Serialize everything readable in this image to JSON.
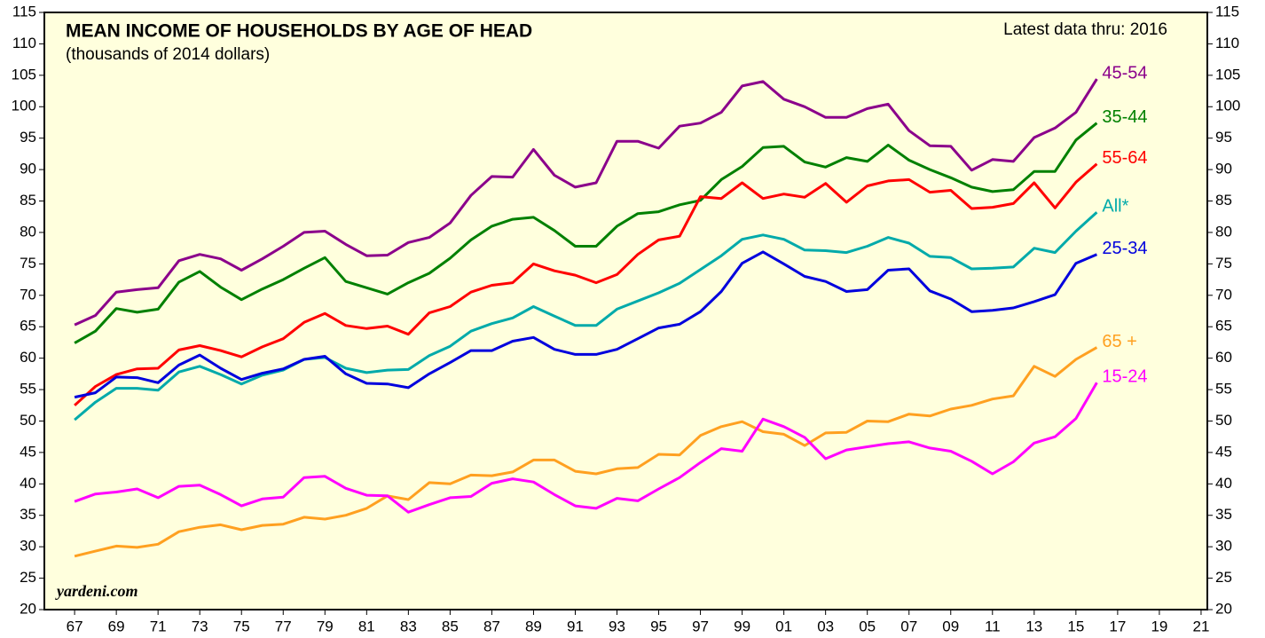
{
  "chart_data": {
    "type": "line",
    "title": "MEAN INCOME OF HOUSEHOLDS BY AGE OF HEAD",
    "subtitle": "(thousands of 2014 dollars)",
    "annotation": "Latest data thru: 2016",
    "source": "yardeni.com",
    "x": [
      1967,
      1968,
      1969,
      1970,
      1971,
      1972,
      1973,
      1974,
      1975,
      1976,
      1977,
      1978,
      1979,
      1980,
      1981,
      1982,
      1983,
      1984,
      1985,
      1986,
      1987,
      1988,
      1989,
      1990,
      1991,
      1992,
      1993,
      1994,
      1995,
      1996,
      1997,
      1998,
      1999,
      2000,
      2001,
      2002,
      2003,
      2004,
      2005,
      2006,
      2007,
      2008,
      2009,
      2010,
      2011,
      2012,
      2013,
      2014,
      2015,
      2016
    ],
    "series": [
      {
        "name": "45-54",
        "color": "#8b008b",
        "values": [
          65.3,
          66.8,
          70.5,
          70.9,
          71.2,
          75.5,
          76.5,
          75.8,
          74,
          75.8,
          77.8,
          80,
          80.2,
          78.1,
          76.3,
          76.4,
          78.4,
          79.2,
          81.5,
          85.9,
          88.9,
          88.8,
          93.2,
          89.1,
          87.2,
          87.9,
          94.5,
          94.5,
          93.4,
          96.9,
          97.4,
          99.1,
          103.3,
          104,
          101.2,
          100,
          98.3,
          98.3,
          99.7,
          100.4,
          96.2,
          93.8,
          93.7,
          89.9,
          91.6,
          91.3,
          95.1,
          96.6,
          99.1,
          104.4
        ]
      },
      {
        "name": "35-44",
        "color": "#008000",
        "values": [
          62.4,
          64.3,
          67.9,
          67.3,
          67.8,
          72.1,
          73.8,
          71.3,
          69.3,
          71,
          72.5,
          74.3,
          76,
          72.2,
          71.2,
          70.2,
          72,
          73.5,
          75.9,
          78.8,
          81,
          82.1,
          82.4,
          80.3,
          77.8,
          77.8,
          81,
          83,
          83.3,
          84.4,
          85.1,
          88.4,
          90.5,
          93.5,
          93.7,
          91.2,
          90.4,
          91.9,
          91.3,
          93.9,
          91.5,
          90,
          88.7,
          87.2,
          86.5,
          86.8,
          89.7,
          89.7,
          94.7,
          97.4
        ]
      },
      {
        "name": "55-64",
        "color": "#ff0000",
        "values": [
          52.5,
          55.5,
          57.4,
          58.3,
          58.4,
          61.3,
          62,
          61.2,
          60.2,
          61.8,
          63.1,
          65.7,
          67.1,
          65.2,
          64.7,
          65.1,
          63.8,
          67.2,
          68.2,
          70.5,
          71.6,
          72,
          75,
          73.9,
          73.2,
          72,
          73.3,
          76.5,
          78.8,
          79.4,
          85.7,
          85.4,
          87.9,
          85.4,
          86.1,
          85.6,
          87.8,
          84.8,
          87.4,
          88.2,
          88.4,
          86.4,
          86.7,
          83.8,
          84,
          84.6,
          87.9,
          83.9,
          88,
          90.9
        ]
      },
      {
        "name": "All*",
        "color": "#00aaaa",
        "values": [
          50.2,
          53,
          55.2,
          55.2,
          54.9,
          57.8,
          58.7,
          57.4,
          55.9,
          57.3,
          58.1,
          59.8,
          60.1,
          58.4,
          57.7,
          58.1,
          58.2,
          60.4,
          61.9,
          64.3,
          65.5,
          66.4,
          68.2,
          66.7,
          65.2,
          65.2,
          67.8,
          69.1,
          70.4,
          71.9,
          74.1,
          76.3,
          78.9,
          79.6,
          78.9,
          77.2,
          77.1,
          76.8,
          77.8,
          79.2,
          78.3,
          76.2,
          76,
          74.2,
          74.3,
          74.5,
          77.5,
          76.8,
          80.2,
          83.2
        ]
      },
      {
        "name": "25-34",
        "color": "#0000dd",
        "values": [
          53.8,
          54.5,
          57,
          56.9,
          56.1,
          58.9,
          60.5,
          58.4,
          56.6,
          57.6,
          58.3,
          59.8,
          60.3,
          57.5,
          56,
          55.9,
          55.3,
          57.5,
          59.3,
          61.2,
          61.2,
          62.7,
          63.3,
          61.4,
          60.6,
          60.6,
          61.4,
          63.1,
          64.8,
          65.4,
          67.4,
          70.6,
          75.1,
          76.9,
          75,
          73,
          72.2,
          70.6,
          70.9,
          74,
          74.2,
          70.7,
          69.4,
          67.4,
          67.6,
          68,
          69,
          70.1,
          75.1,
          76.5
        ]
      },
      {
        "name": "65 +",
        "color": "#ffa020",
        "values": [
          28.5,
          29.3,
          30.1,
          29.9,
          30.4,
          32.4,
          33.1,
          33.5,
          32.7,
          33.4,
          33.6,
          34.7,
          34.4,
          35,
          36.1,
          38.1,
          37.5,
          40.2,
          40,
          41.4,
          41.3,
          41.9,
          43.8,
          43.8,
          42,
          41.6,
          42.4,
          42.6,
          44.7,
          44.6,
          47.7,
          49.1,
          49.9,
          48.3,
          47.9,
          46.1,
          48.1,
          48.2,
          50,
          49.9,
          51.1,
          50.8,
          51.9,
          52.5,
          53.5,
          54,
          58.7,
          57.1,
          59.8,
          61.7
        ]
      },
      {
        "name": "15-24",
        "color": "#ff00ff",
        "values": [
          37.2,
          38.4,
          38.7,
          39.2,
          37.8,
          39.6,
          39.8,
          38.3,
          36.5,
          37.6,
          37.9,
          41,
          41.2,
          39.3,
          38.2,
          38.1,
          35.5,
          36.7,
          37.8,
          38,
          40.1,
          40.8,
          40.3,
          38.3,
          36.5,
          36.1,
          37.7,
          37.3,
          39.2,
          41,
          43.4,
          45.6,
          45.2,
          50.3,
          49.1,
          47.4,
          44,
          45.4,
          45.9,
          46.4,
          46.7,
          45.7,
          45.2,
          43.6,
          41.6,
          43.5,
          46.5,
          47.5,
          50.4,
          56.1
        ]
      }
    ],
    "xlim": [
      1965.55,
      2021.3
    ],
    "xticks": [
      {
        "value": 1967,
        "label": "67"
      },
      {
        "value": 1969,
        "label": "69"
      },
      {
        "value": 1971,
        "label": "71"
      },
      {
        "value": 1973,
        "label": "73"
      },
      {
        "value": 1975,
        "label": "75"
      },
      {
        "value": 1977,
        "label": "77"
      },
      {
        "value": 1979,
        "label": "79"
      },
      {
        "value": 1981,
        "label": "81"
      },
      {
        "value": 1983,
        "label": "83"
      },
      {
        "value": 1985,
        "label": "85"
      },
      {
        "value": 1987,
        "label": "87"
      },
      {
        "value": 1989,
        "label": "89"
      },
      {
        "value": 1991,
        "label": "91"
      },
      {
        "value": 1993,
        "label": "93"
      },
      {
        "value": 1995,
        "label": "95"
      },
      {
        "value": 1997,
        "label": "97"
      },
      {
        "value": 1999,
        "label": "99"
      },
      {
        "value": 2001,
        "label": "01"
      },
      {
        "value": 2003,
        "label": "03"
      },
      {
        "value": 2005,
        "label": "05"
      },
      {
        "value": 2007,
        "label": "07"
      },
      {
        "value": 2009,
        "label": "09"
      },
      {
        "value": 2011,
        "label": "11"
      },
      {
        "value": 2013,
        "label": "13"
      },
      {
        "value": 2015,
        "label": "15"
      },
      {
        "value": 2017,
        "label": "17"
      },
      {
        "value": 2019,
        "label": "19"
      },
      {
        "value": 2021,
        "label": "21"
      }
    ],
    "ylim": [
      20,
      115
    ],
    "yticks": [
      20,
      25,
      30,
      35,
      40,
      45,
      50,
      55,
      60,
      65,
      70,
      75,
      80,
      85,
      90,
      95,
      100,
      105,
      110,
      115
    ],
    "grid": false
  }
}
